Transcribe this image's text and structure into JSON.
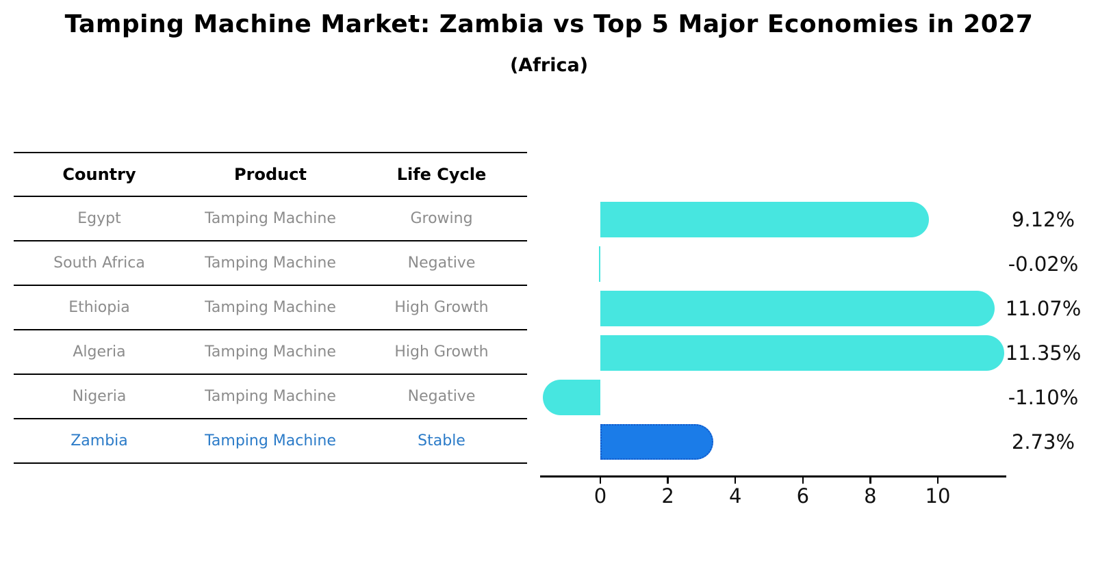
{
  "header": {
    "title": "Tamping Machine Market: Zambia vs Top 5 Major Economies in 2027",
    "subtitle": "(Africa)"
  },
  "table": {
    "columns": [
      "Country",
      "Product",
      "Life Cycle"
    ],
    "rows": [
      {
        "country": "Egypt",
        "product": "Tamping Machine",
        "life_cycle": "Growing",
        "highlight": false
      },
      {
        "country": "South Africa",
        "product": "Tamping Machine",
        "life_cycle": "Negative",
        "highlight": false
      },
      {
        "country": "Ethiopia",
        "product": "Tamping Machine",
        "life_cycle": "High Growth",
        "highlight": false
      },
      {
        "country": "Algeria",
        "product": "Tamping Machine",
        "life_cycle": "High Growth",
        "highlight": false
      },
      {
        "country": "Nigeria",
        "product": "Tamping Machine",
        "life_cycle": "Negative",
        "highlight": false
      },
      {
        "country": "Zambia",
        "product": "Tamping Machine",
        "life_cycle": "Stable",
        "highlight": true
      }
    ]
  },
  "chart_data": {
    "type": "bar",
    "orientation": "horizontal",
    "title": "Tamping Machine Market: Zambia vs Top 5 Major Economies in 2027",
    "subtitle": "(Africa)",
    "categories": [
      "Egypt",
      "South Africa",
      "Ethiopia",
      "Algeria",
      "Nigeria",
      "Zambia"
    ],
    "values": [
      9.12,
      -0.02,
      11.07,
      11.35,
      -1.1,
      2.73
    ],
    "value_labels": [
      "9.12%",
      "-0.02%",
      "11.07%",
      "11.35%",
      "-1.10%",
      "2.73%"
    ],
    "x_ticks": [
      0,
      2,
      4,
      6,
      8,
      10
    ],
    "xlim": [
      -1.78,
      12.03
    ],
    "xlabel": "",
    "ylabel": "",
    "grid": false,
    "legend": false,
    "highlight_index": 5,
    "colors": {
      "bar": "#47E6E0",
      "highlight_bar": "#1B7CE8",
      "highlight_bar_border": "#1358C9",
      "highlight_text": "#2B7BC8",
      "table_text": "#8C8C8C",
      "axis": "#000000"
    }
  }
}
